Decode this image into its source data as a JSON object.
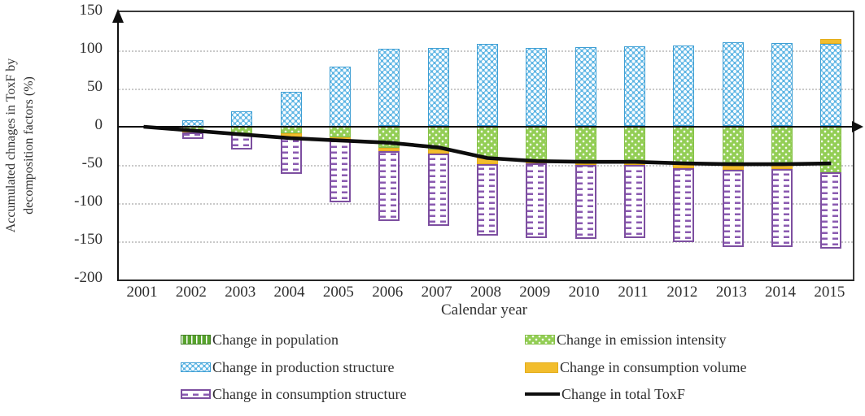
{
  "figure": {
    "ylabel_line1": "Accumulated chnages in ToxF by",
    "ylabel_line2": "decomposition factors (%)",
    "xlabel": "Calendar year"
  },
  "chart_data": {
    "type": "bar",
    "subtype": "stacked-bar-with-line",
    "title": "",
    "xlabel": "Calendar year",
    "ylabel": "Accumulated chnages in ToxF by decomposition factors (%)",
    "ylim": [
      -200,
      150
    ],
    "yticks": [
      150,
      100,
      50,
      0,
      -50,
      -100,
      -150,
      -200
    ],
    "grid": "horizontal-dotted",
    "legend_position": "bottom-two-columns",
    "categories": [
      2001,
      2002,
      2003,
      2004,
      2005,
      2006,
      2007,
      2008,
      2009,
      2010,
      2011,
      2012,
      2013,
      2014,
      2015
    ],
    "series": [
      {
        "key": "population",
        "name": "Change in population",
        "pattern": "green-vertical-stripes",
        "values": [
          0,
          0,
          0,
          0,
          0,
          1,
          1,
          1,
          1,
          1,
          1,
          1,
          1,
          1,
          1
        ]
      },
      {
        "key": "production_structure",
        "name": "Change in production structure",
        "pattern": "blue-circles",
        "values": [
          0,
          9,
          20,
          46,
          79,
          101,
          102,
          108,
          102,
          103,
          104,
          105,
          110,
          109,
          108
        ]
      },
      {
        "key": "emission_intensity",
        "name": "Change in emission intensity",
        "pattern": "green-dots",
        "values": [
          0,
          -6,
          -8,
          -9,
          -14,
          -28,
          -30,
          -40,
          -43,
          -45,
          -44,
          -47,
          -49,
          -49,
          -60
        ]
      },
      {
        "key": "consumption_volume",
        "name": "Change in consumption volume",
        "pattern": "solid-yellow",
        "values": [
          0,
          -1,
          -2,
          -5,
          -4,
          -4,
          -5,
          -9,
          -5,
          -5,
          -6,
          -7,
          -7,
          -6,
          6
        ]
      },
      {
        "key": "consumption_structure",
        "name": "Change in consumption structure",
        "pattern": "white-purple-dashes",
        "values": [
          0,
          -9,
          -20,
          -48,
          -81,
          -91,
          -95,
          -94,
          -98,
          -97,
          -96,
          -97,
          -101,
          -102,
          -100
        ]
      }
    ],
    "line_series": {
      "key": "total",
      "name": "Change in total ToxF",
      "values": [
        0,
        -5,
        -10,
        -15,
        -18,
        -21,
        -27,
        -41,
        -45,
        -46,
        -46,
        -48,
        -49,
        -49,
        -48
      ]
    },
    "stack_order_positive": [
      "population",
      "production_structure",
      "consumption_volume"
    ],
    "stack_order_negative": [
      "emission_intensity",
      "consumption_volume",
      "consumption_structure"
    ]
  },
  "colors": {
    "production_fill": "#5db5e4",
    "production_border": "#3f9fd4",
    "emission_fill": "#93ce55",
    "population_stripe": "#58a32e",
    "volume_fill": "#f2bd2d",
    "structure_border": "#7d4fa0",
    "structure_dash": "#8a5ab0",
    "total_line": "#0d0d0d",
    "grid": "#c9c9c9"
  },
  "legend": {
    "items": [
      {
        "label": "Change in population"
      },
      {
        "label": "Change in production structure"
      },
      {
        "label": "Change in consumption structure"
      },
      {
        "label": "Change in emission intensity"
      },
      {
        "label": "Change in consumption volume"
      },
      {
        "label": "Change in total ToxF"
      }
    ]
  }
}
